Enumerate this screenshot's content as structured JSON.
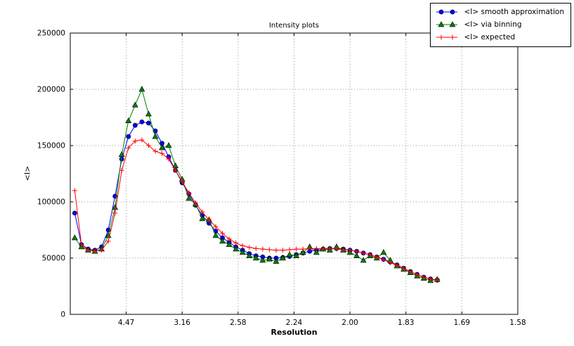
{
  "chart_data": {
    "type": "line",
    "title": "Intensity plots",
    "xlabel": "Resolution",
    "ylabel": "<I>",
    "x_axis_note": "x is linear in 1/d^2 from 0 to 0.4; tick labels show d-spacing (A)",
    "xlim": [
      0,
      0.4
    ],
    "ylim": [
      0,
      250000
    ],
    "grid": true,
    "grid_style": "dotted",
    "legend_position": "upper right, outside axes top",
    "x_ticks": [
      {
        "value": 0.05,
        "label": "4.47"
      },
      {
        "value": 0.1,
        "label": "3.16"
      },
      {
        "value": 0.15,
        "label": "2.58"
      },
      {
        "value": 0.2,
        "label": "2.24"
      },
      {
        "value": 0.25,
        "label": "2.00"
      },
      {
        "value": 0.3,
        "label": "1.83"
      },
      {
        "value": 0.35,
        "label": "1.69"
      },
      {
        "value": 0.4,
        "label": "1.58"
      }
    ],
    "y_ticks": [
      {
        "value": 0,
        "label": "0"
      },
      {
        "value": 50000,
        "label": "50000"
      },
      {
        "value": 100000,
        "label": "100000"
      },
      {
        "value": 150000,
        "label": "150000"
      },
      {
        "value": 200000,
        "label": "200000"
      },
      {
        "value": 250000,
        "label": "250000"
      }
    ],
    "x": [
      0.004,
      0.01,
      0.016,
      0.022,
      0.028,
      0.034,
      0.04,
      0.046,
      0.052,
      0.058,
      0.064,
      0.07,
      0.076,
      0.082,
      0.088,
      0.094,
      0.1,
      0.106,
      0.112,
      0.118,
      0.124,
      0.13,
      0.136,
      0.142,
      0.148,
      0.154,
      0.16,
      0.166,
      0.172,
      0.178,
      0.184,
      0.19,
      0.196,
      0.202,
      0.208,
      0.214,
      0.22,
      0.226,
      0.232,
      0.238,
      0.244,
      0.25,
      0.256,
      0.262,
      0.268,
      0.274,
      0.28,
      0.286,
      0.292,
      0.298,
      0.304,
      0.31,
      0.316,
      0.322,
      0.328
    ],
    "series": [
      {
        "name": "<I> smooth approximation",
        "color": "#0000ff",
        "marker": "circle",
        "values": [
          90000,
          62000,
          58000,
          57000,
          60000,
          75000,
          105000,
          138000,
          158000,
          168000,
          171000,
          170000,
          163000,
          152000,
          140000,
          128000,
          117000,
          107000,
          97000,
          88000,
          81000,
          74000,
          68000,
          64000,
          60000,
          57000,
          54000,
          52000,
          51000,
          50000,
          50000,
          50500,
          51500,
          53000,
          54500,
          56000,
          57000,
          58000,
          58500,
          58500,
          58000,
          57000,
          56000,
          54500,
          53000,
          51000,
          49000,
          46500,
          44000,
          41000,
          38000,
          35500,
          33000,
          31500,
          30500
        ]
      },
      {
        "name": "<I> via binning",
        "color": "#008000",
        "marker": "triangle",
        "values": [
          68000,
          60000,
          57000,
          56000,
          58000,
          70000,
          95000,
          142000,
          172000,
          186000,
          200000,
          178000,
          158000,
          148000,
          150000,
          132000,
          120000,
          103000,
          98000,
          85000,
          84000,
          70000,
          65000,
          62000,
          58000,
          55000,
          52000,
          50000,
          48000,
          49000,
          47000,
          50000,
          53000,
          52000,
          55000,
          60000,
          55000,
          58000,
          57000,
          60000,
          57000,
          55000,
          52000,
          48000,
          52000,
          50000,
          55000,
          48000,
          43000,
          40000,
          37000,
          34000,
          32000,
          30000,
          31000
        ]
      },
      {
        "name": "<I> expected",
        "color": "#ff0000",
        "marker": "plus",
        "values": [
          110000,
          62000,
          57000,
          56500,
          57000,
          65000,
          90000,
          128000,
          148000,
          154000,
          155000,
          150000,
          145000,
          143000,
          138000,
          128000,
          118000,
          108000,
          99000,
          91000,
          84000,
          78000,
          72000,
          67000,
          63500,
          61000,
          59500,
          58500,
          58000,
          57500,
          57000,
          57000,
          57500,
          58000,
          58000,
          58500,
          58500,
          58500,
          58500,
          58000,
          57500,
          57000,
          56000,
          54500,
          53000,
          51000,
          48500,
          46000,
          43500,
          41000,
          38000,
          35500,
          33000,
          31500,
          30000
        ]
      }
    ]
  }
}
